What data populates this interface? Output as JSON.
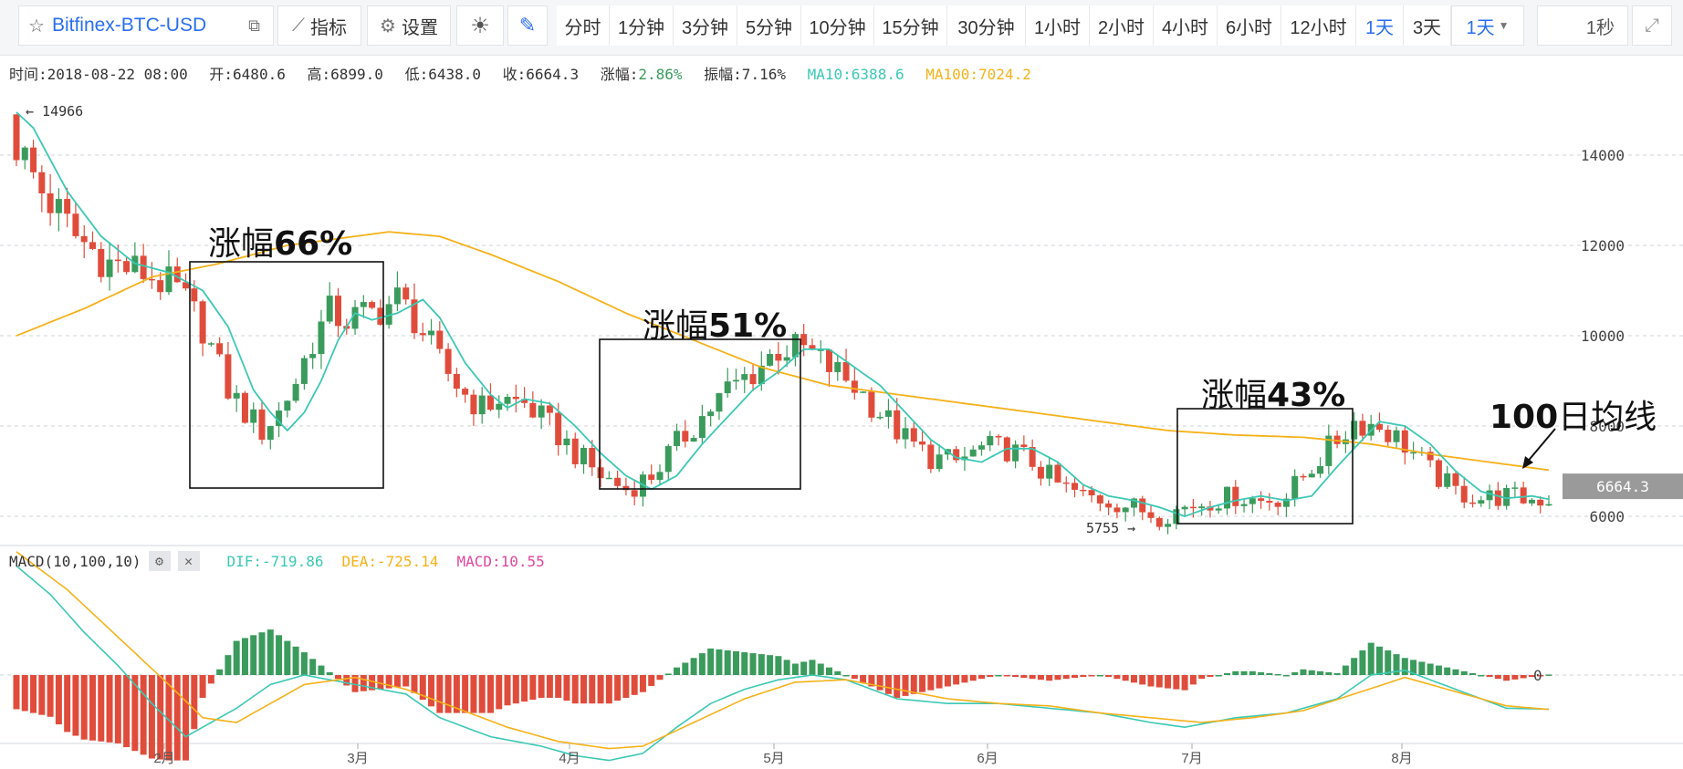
{
  "toolbar": {
    "symbol": "Bitfinex-BTC-USD",
    "indicators_label": "指标",
    "settings_label": "设置",
    "intervals": [
      "分时",
      "1分钟",
      "3分钟",
      "5分钟",
      "10分钟",
      "15分钟",
      "30分钟",
      "1小时",
      "2小时",
      "4小时",
      "6小时",
      "12小时",
      "1天",
      "3天"
    ],
    "active_interval": "1天",
    "interval_select": "1天",
    "refresh": "1秒"
  },
  "info": {
    "time": "时间:2018-08-22 08:00",
    "open": "开:6480.6",
    "high": "高:6899.0",
    "low": "低:6438.0",
    "close": "收:6664.3",
    "change": "2.86%",
    "change_label": "涨幅:",
    "amplitude": "振幅:7.16%",
    "ma10": "MA10:6388.6",
    "ma100": "MA100:7024.2"
  },
  "macd_header": {
    "title": "MACD(10,100,10)",
    "dif": "DIF:-719.86",
    "dea": "DEA:-725.14",
    "macd": "MACD:10.55"
  },
  "colors": {
    "up": "#3a9b5c",
    "down": "#e04c3b",
    "ma10": "#3cc8b4",
    "ma100": "#f5b11a",
    "dif": "#3cc8b4",
    "dea": "#f5b11a",
    "macd": "#e0479e",
    "accent": "#2a6ef0"
  },
  "annotations": {
    "a1_prefix": "涨幅",
    "a1_value": "66%",
    "a2_prefix": "涨幅",
    "a2_value": "51%",
    "a3_prefix": "涨幅",
    "a3_value": "43%",
    "ma_label_num": "100",
    "ma_label_text": "日均线"
  },
  "chart_data": {
    "type": "candlestick",
    "y_ticks": [
      6000,
      8000,
      10000,
      12000,
      14000
    ],
    "x_labels": [
      "2月",
      "3月",
      "4月",
      "5月",
      "6月",
      "7月",
      "8月"
    ],
    "last_price": "6664.3",
    "high_marker": "14966",
    "low_marker": "5755",
    "ma10_key": [
      [
        0,
        14950
      ],
      [
        2,
        14600
      ],
      [
        6,
        13200
      ],
      [
        10,
        12200
      ],
      [
        14,
        11600
      ],
      [
        18,
        11400
      ],
      [
        22,
        11000
      ],
      [
        25,
        10200
      ],
      [
        28,
        8800
      ],
      [
        30,
        8300
      ],
      [
        32,
        7900
      ],
      [
        34,
        8300
      ],
      [
        36,
        9000
      ],
      [
        38,
        9900
      ],
      [
        40,
        10500
      ],
      [
        42,
        10350
      ],
      [
        45,
        10500
      ],
      [
        48,
        10800
      ],
      [
        50,
        10400
      ],
      [
        53,
        9400
      ],
      [
        56,
        8700
      ],
      [
        58,
        8400
      ],
      [
        60,
        8600
      ],
      [
        63,
        8500
      ],
      [
        66,
        8000
      ],
      [
        69,
        7400
      ],
      [
        72,
        6900
      ],
      [
        75,
        6600
      ],
      [
        78,
        6900
      ],
      [
        81,
        7600
      ],
      [
        84,
        8200
      ],
      [
        87,
        8800
      ],
      [
        90,
        9200
      ],
      [
        93,
        9700
      ],
      [
        96,
        9700
      ],
      [
        99,
        9300
      ],
      [
        102,
        8900
      ],
      [
        105,
        8300
      ],
      [
        108,
        7700
      ],
      [
        111,
        7300
      ],
      [
        114,
        7200
      ],
      [
        117,
        7500
      ],
      [
        120,
        7500
      ],
      [
        123,
        7200
      ],
      [
        126,
        6700
      ],
      [
        129,
        6450
      ],
      [
        132,
        6350
      ],
      [
        135,
        6200
      ],
      [
        138,
        6000
      ],
      [
        141,
        6200
      ],
      [
        144,
        6350
      ],
      [
        147,
        6450
      ],
      [
        150,
        6350
      ],
      [
        153,
        6450
      ],
      [
        156,
        7100
      ],
      [
        159,
        7700
      ],
      [
        161,
        8100
      ],
      [
        164,
        8000
      ],
      [
        167,
        7600
      ],
      [
        170,
        7000
      ],
      [
        173,
        6550
      ],
      [
        176,
        6400
      ],
      [
        179,
        6450
      ],
      [
        181,
        6380
      ]
    ],
    "ma100_key": [
      [
        0,
        10000
      ],
      [
        8,
        10600
      ],
      [
        16,
        11300
      ],
      [
        24,
        11600
      ],
      [
        32,
        12000
      ],
      [
        40,
        12200
      ],
      [
        44,
        12300
      ],
      [
        50,
        12200
      ],
      [
        56,
        11800
      ],
      [
        64,
        11200
      ],
      [
        72,
        10500
      ],
      [
        80,
        9900
      ],
      [
        88,
        9300
      ],
      [
        96,
        8900
      ],
      [
        104,
        8700
      ],
      [
        112,
        8500
      ],
      [
        120,
        8300
      ],
      [
        128,
        8100
      ],
      [
        136,
        7900
      ],
      [
        144,
        7800
      ],
      [
        152,
        7750
      ],
      [
        160,
        7600
      ],
      [
        168,
        7350
      ],
      [
        176,
        7150
      ],
      [
        181,
        7024
      ]
    ],
    "dif_key": [
      [
        0,
        2300
      ],
      [
        4,
        1700
      ],
      [
        8,
        900
      ],
      [
        12,
        200
      ],
      [
        16,
        -600
      ],
      [
        20,
        -1300
      ],
      [
        22,
        -1100
      ],
      [
        26,
        -700
      ],
      [
        30,
        -200
      ],
      [
        34,
        0
      ],
      [
        40,
        -200
      ],
      [
        46,
        -400
      ],
      [
        50,
        -900
      ],
      [
        56,
        -1300
      ],
      [
        62,
        -1500
      ],
      [
        66,
        -1700
      ],
      [
        70,
        -1800
      ],
      [
        74,
        -1650
      ],
      [
        78,
        -1100
      ],
      [
        82,
        -600
      ],
      [
        86,
        -300
      ],
      [
        90,
        -100
      ],
      [
        94,
        0
      ],
      [
        98,
        -100
      ],
      [
        104,
        -500
      ],
      [
        110,
        -600
      ],
      [
        116,
        -600
      ],
      [
        122,
        -700
      ],
      [
        128,
        -800
      ],
      [
        134,
        -1000
      ],
      [
        138,
        -1100
      ],
      [
        144,
        -900
      ],
      [
        150,
        -800
      ],
      [
        156,
        -500
      ],
      [
        160,
        0
      ],
      [
        164,
        100
      ],
      [
        170,
        -300
      ],
      [
        176,
        -700
      ],
      [
        181,
        -720
      ]
    ],
    "dea_key": [
      [
        0,
        2600
      ],
      [
        6,
        1800
      ],
      [
        12,
        800
      ],
      [
        18,
        -200
      ],
      [
        22,
        -900
      ],
      [
        26,
        -1000
      ],
      [
        30,
        -600
      ],
      [
        34,
        -200
      ],
      [
        40,
        -50
      ],
      [
        46,
        -300
      ],
      [
        52,
        -700
      ],
      [
        58,
        -1100
      ],
      [
        64,
        -1400
      ],
      [
        70,
        -1550
      ],
      [
        74,
        -1500
      ],
      [
        80,
        -1000
      ],
      [
        86,
        -500
      ],
      [
        92,
        -150
      ],
      [
        98,
        -100
      ],
      [
        104,
        -300
      ],
      [
        110,
        -500
      ],
      [
        116,
        -600
      ],
      [
        122,
        -650
      ],
      [
        128,
        -800
      ],
      [
        134,
        -900
      ],
      [
        140,
        -1000
      ],
      [
        146,
        -900
      ],
      [
        152,
        -750
      ],
      [
        158,
        -400
      ],
      [
        164,
        -50
      ],
      [
        170,
        -350
      ],
      [
        176,
        -650
      ],
      [
        181,
        -725
      ]
    ]
  }
}
